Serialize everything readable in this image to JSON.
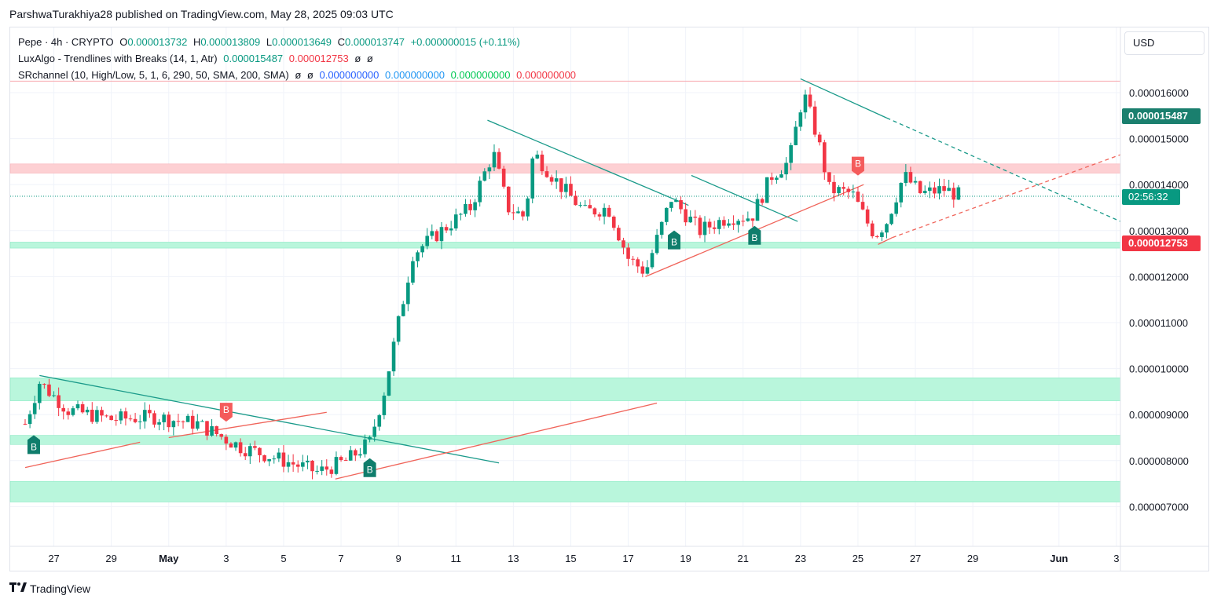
{
  "header": {
    "published": "ParshwaTurakhiya28 published on TradingView.com, May 28, 2025 09:03 UTC"
  },
  "legend": {
    "symbol": {
      "name": "Pepe · 4h · CRYPTO",
      "o_label": "O",
      "o": "0.000013732",
      "h_label": "H",
      "h": "0.000013809",
      "l_label": "L",
      "l": "0.000013649",
      "c_label": "C",
      "c": "0.000013747",
      "change": "+0.000000015 (+0.11%)"
    },
    "luxalgo": {
      "name": "LuxAlgo - Trendlines with Breaks (14, 1, Atr)",
      "v1": "0.000015487",
      "v2": "0.000012753",
      "v3": "ø",
      "v4": "ø"
    },
    "srchannel": {
      "name": "SRchannel (10, High/Low, 5, 1, 6, 290, 50, SMA, 200, SMA)",
      "v1": "ø",
      "v2": "ø",
      "v3": "0.000000000",
      "v4": "0.000000000",
      "v5": "0.000000000",
      "v6": "0.000000000"
    }
  },
  "currency": "USD",
  "price_tags": {
    "upper": "0.000015487",
    "countdown": "02:56:32",
    "lower": "0.000012753"
  },
  "footer": {
    "brand": "TradingView"
  },
  "colors": {
    "up": "#089981",
    "down": "#f23645",
    "support_zone": "#b9f6dc",
    "resistance_zone": "#fdd0d3",
    "teal_trend": "#1a9a8a",
    "red_trend": "#f0645a"
  },
  "chart_data": {
    "type": "candlestick",
    "y_ticks": [
      "0.000016000",
      "0.000015000",
      "0.000014000",
      "0.000013000",
      "0.000012000",
      "0.000011000",
      "0.000010000",
      "0.000009000",
      "0.000008000",
      "0.000007000"
    ],
    "y_tick_values": [
      16,
      15,
      14,
      13,
      12,
      11,
      10,
      9,
      8,
      7
    ],
    "y_unit_note": "values below in units of 1e-6",
    "ylim": [
      6.2,
      17.0
    ],
    "x_ticks": [
      {
        "label": "27",
        "day": 1
      },
      {
        "label": "29",
        "day": 3
      },
      {
        "label": "May",
        "day": 5,
        "bold": true
      },
      {
        "label": "3",
        "day": 7
      },
      {
        "label": "5",
        "day": 9
      },
      {
        "label": "7",
        "day": 11
      },
      {
        "label": "9",
        "day": 13
      },
      {
        "label": "11",
        "day": 15
      },
      {
        "label": "13",
        "day": 17
      },
      {
        "label": "15",
        "day": 19
      },
      {
        "label": "17",
        "day": 21
      },
      {
        "label": "19",
        "day": 23
      },
      {
        "label": "21",
        "day": 25
      },
      {
        "label": "23",
        "day": 27
      },
      {
        "label": "25",
        "day": 29
      },
      {
        "label": "27",
        "day": 31
      },
      {
        "label": "29",
        "day": 33
      },
      {
        "label": "Jun",
        "day": 36,
        "bold": true
      },
      {
        "label": "3",
        "day": 38
      }
    ],
    "current_price": 13.747,
    "resistance_zones": [
      [
        14.25,
        14.45
      ]
    ],
    "support_zones": [
      [
        12.62,
        12.75
      ],
      [
        9.3,
        9.8
      ],
      [
        8.35,
        8.55
      ],
      [
        7.1,
        7.55
      ]
    ],
    "resistance_line": 16.25,
    "anchor_points": [
      {
        "day": 0.0,
        "price": 8.8
      },
      {
        "day": 0.5,
        "price": 9.7
      },
      {
        "day": 1.5,
        "price": 9.1
      },
      {
        "day": 3.0,
        "price": 8.9
      },
      {
        "day": 4.5,
        "price": 8.95
      },
      {
        "day": 6.0,
        "price": 8.8
      },
      {
        "day": 7.5,
        "price": 8.3
      },
      {
        "day": 9.0,
        "price": 8.0
      },
      {
        "day": 10.2,
        "price": 7.75
      },
      {
        "day": 11.2,
        "price": 8.0
      },
      {
        "day": 12.0,
        "price": 8.4
      },
      {
        "day": 12.5,
        "price": 9.5
      },
      {
        "day": 13.0,
        "price": 11.0
      },
      {
        "day": 13.5,
        "price": 12.5
      },
      {
        "day": 14.5,
        "price": 13.0
      },
      {
        "day": 15.5,
        "price": 13.5
      },
      {
        "day": 16.3,
        "price": 14.7
      },
      {
        "day": 16.8,
        "price": 13.5
      },
      {
        "day": 17.4,
        "price": 13.3
      },
      {
        "day": 17.7,
        "price": 14.7
      },
      {
        "day": 18.6,
        "price": 14.0
      },
      {
        "day": 19.5,
        "price": 13.4
      },
      {
        "day": 20.3,
        "price": 13.5
      },
      {
        "day": 21.0,
        "price": 12.4
      },
      {
        "day": 21.6,
        "price": 12.1
      },
      {
        "day": 22.5,
        "price": 13.7
      },
      {
        "day": 23.5,
        "price": 13.0
      },
      {
        "day": 24.5,
        "price": 13.3
      },
      {
        "day": 25.3,
        "price": 13.3
      },
      {
        "day": 26.0,
        "price": 14.2
      },
      {
        "day": 26.6,
        "price": 14.5
      },
      {
        "day": 27.1,
        "price": 16.0
      },
      {
        "day": 27.6,
        "price": 15.0
      },
      {
        "day": 28.0,
        "price": 13.9
      },
      {
        "day": 28.8,
        "price": 13.8
      },
      {
        "day": 29.3,
        "price": 13.2
      },
      {
        "day": 29.6,
        "price": 12.9
      },
      {
        "day": 30.0,
        "price": 13.2
      },
      {
        "day": 30.6,
        "price": 14.2
      },
      {
        "day": 31.2,
        "price": 13.8
      },
      {
        "day": 32.0,
        "price": 13.9
      },
      {
        "day": 32.6,
        "price": 13.747
      }
    ],
    "trendlines": [
      {
        "color": "teal",
        "from": [
          0.5,
          9.85
        ],
        "to": [
          16.5,
          7.95
        ],
        "dashed": false
      },
      {
        "color": "red",
        "from": [
          0.0,
          7.85
        ],
        "to": [
          4.0,
          8.4
        ],
        "dashed": false
      },
      {
        "color": "red",
        "from": [
          5.0,
          8.5
        ],
        "to": [
          10.5,
          9.05
        ],
        "dashed": false
      },
      {
        "color": "red",
        "from": [
          10.8,
          7.6
        ],
        "to": [
          22.0,
          9.25
        ],
        "dashed": false
      },
      {
        "color": "teal",
        "from": [
          16.1,
          15.4
        ],
        "to": [
          23.1,
          13.55
        ],
        "dashed": false
      },
      {
        "color": "red",
        "from": [
          21.6,
          12.0
        ],
        "to": [
          29.2,
          14.0
        ],
        "dashed": false
      },
      {
        "color": "teal",
        "from": [
          23.2,
          14.2
        ],
        "to": [
          26.9,
          13.2
        ],
        "dashed": false
      },
      {
        "color": "teal",
        "from": [
          27.0,
          16.3
        ],
        "to": [
          30.0,
          15.45
        ],
        "dashed": false
      },
      {
        "color": "teal",
        "from": [
          30.0,
          15.45
        ],
        "to": [
          39.0,
          13.2
        ],
        "dashed": true
      },
      {
        "color": "red",
        "from": [
          29.7,
          12.7
        ],
        "to": [
          30.2,
          12.85
        ],
        "dashed": false
      },
      {
        "color": "red",
        "from": [
          30.2,
          12.85
        ],
        "to": [
          39.0,
          14.65
        ],
        "dashed": true
      }
    ],
    "signals": [
      {
        "type": "B",
        "kind": "bull",
        "day": 0.3,
        "price": 8.45
      },
      {
        "type": "B",
        "kind": "bear",
        "day": 7.0,
        "price": 8.95
      },
      {
        "type": "B",
        "kind": "bull",
        "day": 12.0,
        "price": 7.95
      },
      {
        "type": "B",
        "kind": "bull",
        "day": 22.6,
        "price": 12.9
      },
      {
        "type": "B",
        "kind": "bull",
        "day": 25.4,
        "price": 13.0
      },
      {
        "type": "B",
        "kind": "bear",
        "day": 29.0,
        "price": 14.3
      }
    ]
  }
}
